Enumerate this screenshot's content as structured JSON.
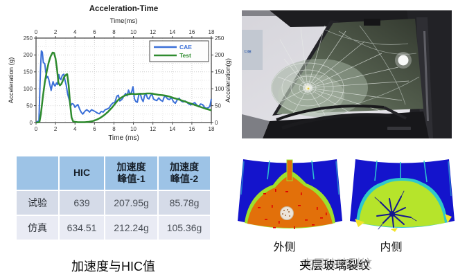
{
  "captions": {
    "left": "加速度与HIC值",
    "right": "夹层玻璃裂纹"
  },
  "sim": {
    "label_outer": "外侧",
    "label_inner": "内侧",
    "colors": {
      "background_blue": "#1414CC",
      "crack_cyan": "#2FD0D0",
      "rim_green": "#9EE02C",
      "contour_orange": "#E2700A",
      "contour_yellowgreen": "#B6E42B",
      "rim_cyan": "#2FC9C9",
      "star_navy": "#15178F",
      "dash_red": "#E00000",
      "patch_yellow": "#F2E32B"
    }
  },
  "table": {
    "headers": [
      "",
      "HIC",
      "加速度\n峰值-1",
      "加速度\n峰值-2"
    ],
    "rows": [
      [
        "试验",
        "639",
        "207.95g",
        "85.78g"
      ],
      [
        "仿真",
        "634.51",
        "212.24g",
        "105.36g"
      ]
    ],
    "colors": {
      "header_bg": "#9DC3E6",
      "row1_bg": "#D5DBE8",
      "row2_bg": "#E9EBF4"
    }
  },
  "chart_data": {
    "type": "line",
    "title": "Acceleration-Time",
    "xlabel": "Time (ms)",
    "xlabel_top": "Time(ms)",
    "ylabel": "Acceleration (g)",
    "ylabel_right": "Acceleration(g)",
    "xlim": [
      0,
      18
    ],
    "ylim": [
      0,
      250
    ],
    "xtick_step": 2,
    "ytick_step": 50,
    "grid": true,
    "legend_position": "upper right",
    "series": [
      {
        "name": "CAE",
        "color": "#3A6FD8",
        "points": [
          [
            0,
            2
          ],
          [
            0.3,
            4
          ],
          [
            0.45,
            150
          ],
          [
            0.55,
            212
          ],
          [
            0.65,
            208
          ],
          [
            0.75,
            178
          ],
          [
            0.9,
            174
          ],
          [
            1.0,
            149
          ],
          [
            1.1,
            132
          ],
          [
            1.2,
            136
          ],
          [
            1.3,
            128
          ],
          [
            1.45,
            108
          ],
          [
            1.55,
            95
          ],
          [
            1.65,
            110
          ],
          [
            1.75,
            121
          ],
          [
            1.85,
            112
          ],
          [
            1.95,
            108
          ],
          [
            2.1,
            117
          ],
          [
            2.2,
            112
          ],
          [
            2.35,
            142
          ],
          [
            2.45,
            130
          ],
          [
            2.55,
            127
          ],
          [
            2.7,
            140
          ],
          [
            2.85,
            143
          ],
          [
            2.95,
            128
          ],
          [
            3.1,
            110
          ],
          [
            3.25,
            84
          ],
          [
            3.4,
            68
          ],
          [
            3.55,
            50
          ],
          [
            3.7,
            56
          ],
          [
            3.85,
            54
          ],
          [
            4.0,
            45
          ],
          [
            4.15,
            50
          ],
          [
            4.3,
            53
          ],
          [
            4.5,
            38
          ],
          [
            4.65,
            30
          ],
          [
            4.8,
            25
          ],
          [
            5.0,
            33
          ],
          [
            5.2,
            38
          ],
          [
            5.35,
            35
          ],
          [
            5.5,
            31
          ],
          [
            5.7,
            38
          ],
          [
            5.9,
            35
          ],
          [
            6.1,
            32
          ],
          [
            6.3,
            28
          ],
          [
            6.5,
            26
          ],
          [
            6.7,
            33
          ],
          [
            6.9,
            31
          ],
          [
            7.1,
            38
          ],
          [
            7.3,
            40
          ],
          [
            7.5,
            43
          ],
          [
            7.7,
            52
          ],
          [
            7.9,
            58
          ],
          [
            8.1,
            60
          ],
          [
            8.3,
            78
          ],
          [
            8.45,
            81
          ],
          [
            8.6,
            64
          ],
          [
            8.8,
            68
          ],
          [
            9.0,
            77
          ],
          [
            9.2,
            86
          ],
          [
            9.35,
            79
          ],
          [
            9.5,
            96
          ],
          [
            9.65,
            85
          ],
          [
            9.8,
            88
          ],
          [
            9.95,
            106
          ],
          [
            10.1,
            70
          ],
          [
            10.25,
            62
          ],
          [
            10.4,
            60
          ],
          [
            10.55,
            82
          ],
          [
            10.7,
            86
          ],
          [
            10.85,
            70
          ],
          [
            11.0,
            62
          ],
          [
            11.15,
            80
          ],
          [
            11.3,
            85
          ],
          [
            11.45,
            72
          ],
          [
            11.6,
            70
          ],
          [
            11.75,
            80
          ],
          [
            11.9,
            84
          ],
          [
            12.05,
            70
          ],
          [
            12.2,
            67
          ],
          [
            12.4,
            65
          ],
          [
            12.6,
            73
          ],
          [
            12.8,
            66
          ],
          [
            13.0,
            63
          ],
          [
            13.2,
            78
          ],
          [
            13.35,
            76
          ],
          [
            13.5,
            70
          ],
          [
            13.7,
            68
          ],
          [
            13.9,
            74
          ],
          [
            14.1,
            62
          ],
          [
            14.3,
            57
          ],
          [
            14.5,
            67
          ],
          [
            14.7,
            72
          ],
          [
            14.9,
            64
          ],
          [
            15.1,
            61
          ],
          [
            15.3,
            64
          ],
          [
            15.5,
            59
          ],
          [
            15.7,
            55
          ],
          [
            15.9,
            52
          ],
          [
            16.1,
            56
          ],
          [
            16.3,
            59
          ],
          [
            16.5,
            52
          ],
          [
            16.7,
            47
          ],
          [
            16.9,
            55
          ],
          [
            17.1,
            53
          ],
          [
            17.3,
            45
          ],
          [
            17.5,
            42
          ],
          [
            17.7,
            44
          ],
          [
            17.85,
            48
          ],
          [
            18,
            70
          ]
        ]
      },
      {
        "name": "Test",
        "color": "#2E8B2E",
        "points": [
          [
            0,
            0
          ],
          [
            0.35,
            1
          ],
          [
            0.5,
            25
          ],
          [
            0.7,
            75
          ],
          [
            0.9,
            118
          ],
          [
            1.1,
            152
          ],
          [
            1.3,
            178
          ],
          [
            1.5,
            196
          ],
          [
            1.7,
            207
          ],
          [
            1.85,
            206
          ],
          [
            2.0,
            190
          ],
          [
            2.15,
            160
          ],
          [
            2.3,
            118
          ],
          [
            2.45,
            110
          ],
          [
            2.6,
            114
          ],
          [
            2.75,
            124
          ],
          [
            2.9,
            136
          ],
          [
            3.1,
            142
          ],
          [
            3.2,
            143
          ],
          [
            3.35,
            110
          ],
          [
            3.5,
            55
          ],
          [
            3.65,
            15
          ],
          [
            3.8,
            4
          ],
          [
            4.0,
            2
          ],
          [
            4.3,
            1
          ],
          [
            4.6,
            1
          ],
          [
            5.0,
            1
          ],
          [
            5.4,
            2
          ],
          [
            5.8,
            4
          ],
          [
            6.2,
            8
          ],
          [
            6.6,
            14
          ],
          [
            7.0,
            22
          ],
          [
            7.4,
            32
          ],
          [
            7.8,
            44
          ],
          [
            8.1,
            55
          ],
          [
            8.4,
            66
          ],
          [
            8.7,
            73
          ],
          [
            9.0,
            78
          ],
          [
            9.4,
            83
          ],
          [
            9.8,
            85
          ],
          [
            10.2,
            84
          ],
          [
            10.6,
            85
          ],
          [
            11.0,
            85
          ],
          [
            11.4,
            86
          ],
          [
            11.8,
            86
          ],
          [
            12.2,
            84
          ],
          [
            12.6,
            82
          ],
          [
            13.0,
            81
          ],
          [
            13.4,
            79
          ],
          [
            13.8,
            76
          ],
          [
            14.2,
            72
          ],
          [
            14.6,
            69
          ],
          [
            15.0,
            65
          ],
          [
            15.4,
            61
          ],
          [
            15.8,
            57
          ],
          [
            16.2,
            53
          ],
          [
            16.6,
            49
          ],
          [
            17.0,
            45
          ],
          [
            17.4,
            41
          ],
          [
            17.8,
            38
          ],
          [
            18,
            36
          ]
        ]
      }
    ]
  }
}
